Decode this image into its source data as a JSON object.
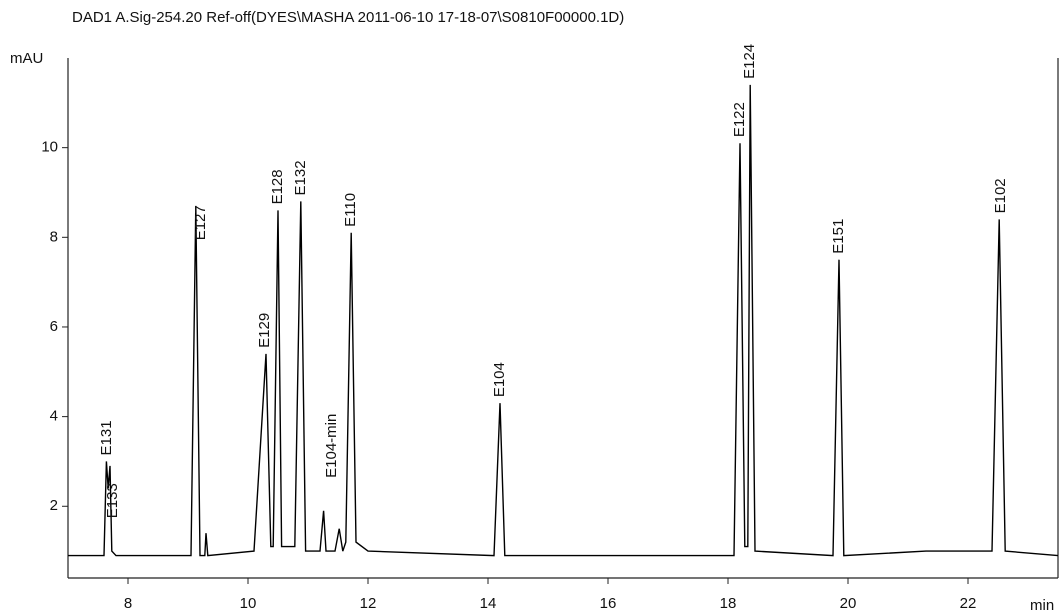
{
  "chart_data": {
    "type": "line",
    "title": "DAD1 A.Sig-254.20 Ref-off(DYES\\MASHA 2011-06-10 17-18-07\\S0810F00000.1D)",
    "y_label": "mAU",
    "x_label": "min",
    "color": "#000000",
    "x": [
      7.0,
      7.6,
      7.64,
      7.67,
      7.7,
      7.73,
      7.8,
      9.05,
      9.13,
      9.2,
      9.28,
      9.3,
      9.33,
      10.1,
      10.3,
      10.38,
      10.42,
      10.5,
      10.56,
      10.78,
      10.88,
      10.96,
      11.2,
      11.26,
      11.3,
      11.45,
      11.52,
      11.58,
      11.63,
      11.72,
      11.8,
      12.0,
      14.1,
      14.2,
      14.28,
      18.1,
      18.2,
      18.28,
      18.33,
      18.37,
      18.45,
      19.75,
      19.85,
      19.93,
      21.3,
      22.4,
      22.52,
      22.62,
      23.5
    ],
    "values": [
      0.9,
      0.9,
      3.0,
      2.4,
      2.9,
      1.0,
      0.9,
      0.9,
      8.7,
      0.9,
      0.9,
      1.4,
      0.9,
      1.0,
      5.4,
      1.1,
      1.1,
      8.6,
      1.1,
      1.1,
      8.8,
      1.0,
      1.0,
      1.9,
      1.0,
      1.0,
      1.5,
      1.0,
      1.2,
      8.1,
      1.2,
      1.0,
      0.9,
      4.3,
      0.9,
      0.9,
      10.1,
      1.1,
      1.1,
      11.4,
      1.0,
      0.9,
      7.5,
      0.9,
      1.0,
      1.0,
      8.4,
      1.0,
      0.9
    ],
    "annotations": [
      {
        "text": "E131",
        "x": 7.65,
        "y": 3.0
      },
      {
        "text": "E133",
        "x": 7.75,
        "y": 1.6
      },
      {
        "text": "E127",
        "x": 9.22,
        "y": 7.8
      },
      {
        "text": "E129",
        "x": 10.28,
        "y": 5.4
      },
      {
        "text": "E128",
        "x": 10.5,
        "y": 8.6
      },
      {
        "text": "E132",
        "x": 10.88,
        "y": 8.8
      },
      {
        "text": "E104-min",
        "x": 11.4,
        "y": 2.5
      },
      {
        "text": "E110",
        "x": 11.72,
        "y": 8.1
      },
      {
        "text": "E104",
        "x": 14.2,
        "y": 4.3
      },
      {
        "text": "E122",
        "x": 18.2,
        "y": 10.1
      },
      {
        "text": "E124",
        "x": 18.37,
        "y": 11.4
      },
      {
        "text": "E151",
        "x": 19.85,
        "y": 7.5
      },
      {
        "text": "E102",
        "x": 22.55,
        "y": 8.4
      }
    ],
    "xlim": [
      7.0,
      23.5
    ],
    "ylim": [
      0.4,
      12.0
    ],
    "xticks": [
      8,
      10,
      12,
      14,
      16,
      18,
      20,
      22
    ],
    "yticks": [
      2,
      4,
      6,
      8,
      10
    ]
  }
}
